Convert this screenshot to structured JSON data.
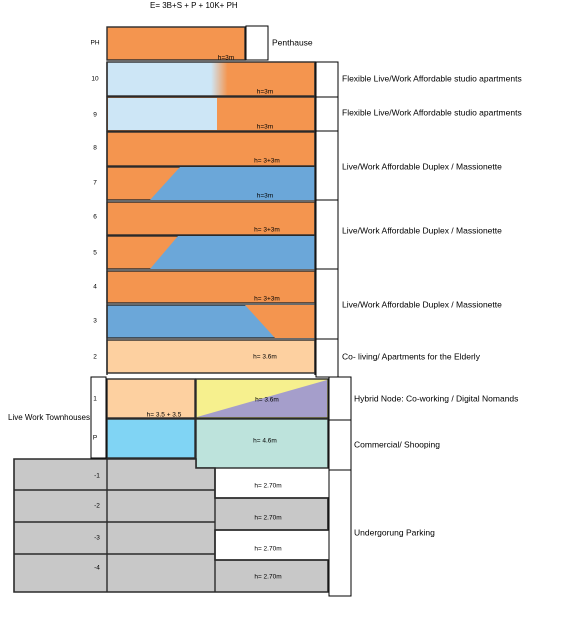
{
  "title": "E= 3B+S + P + 10K+ PH",
  "side_label": "Live Work Townhouses",
  "levels": [
    "PH",
    "10",
    "9",
    "8",
    "7",
    "6",
    "5",
    "4",
    "3",
    "2",
    "1",
    "P",
    "-1",
    "-2",
    "-3",
    "-4"
  ],
  "heights": [
    "h=3m",
    "h=3m",
    "h=3m",
    "h= 3+3m",
    "h=3m",
    "h= 3+3m",
    "h= 3+3m",
    "h= 3.6m",
    "h= 3.6m",
    "h= 3.5 + 3.5",
    "h= 4.6m",
    "h= 2.70m",
    "h= 2.70m",
    "h= 2.70m",
    "h= 2.70m"
  ],
  "uses": [
    "Penthause",
    "Flexible Live/Work Affordable studio apartments",
    "Flexible Live/Work Affordable studio apartments",
    "Live/Work Affordable Duplex / Massionette",
    "Live/Work Affordable Duplex / Massionette",
    "Live/Work Affordable Duplex / Massionette",
    "Co- living/ Apartments for the Elderly",
    "Hybrid Node: Co-working / Digital Nomands",
    "Commercial/ Shooping",
    "Undergorung Parking"
  ]
}
